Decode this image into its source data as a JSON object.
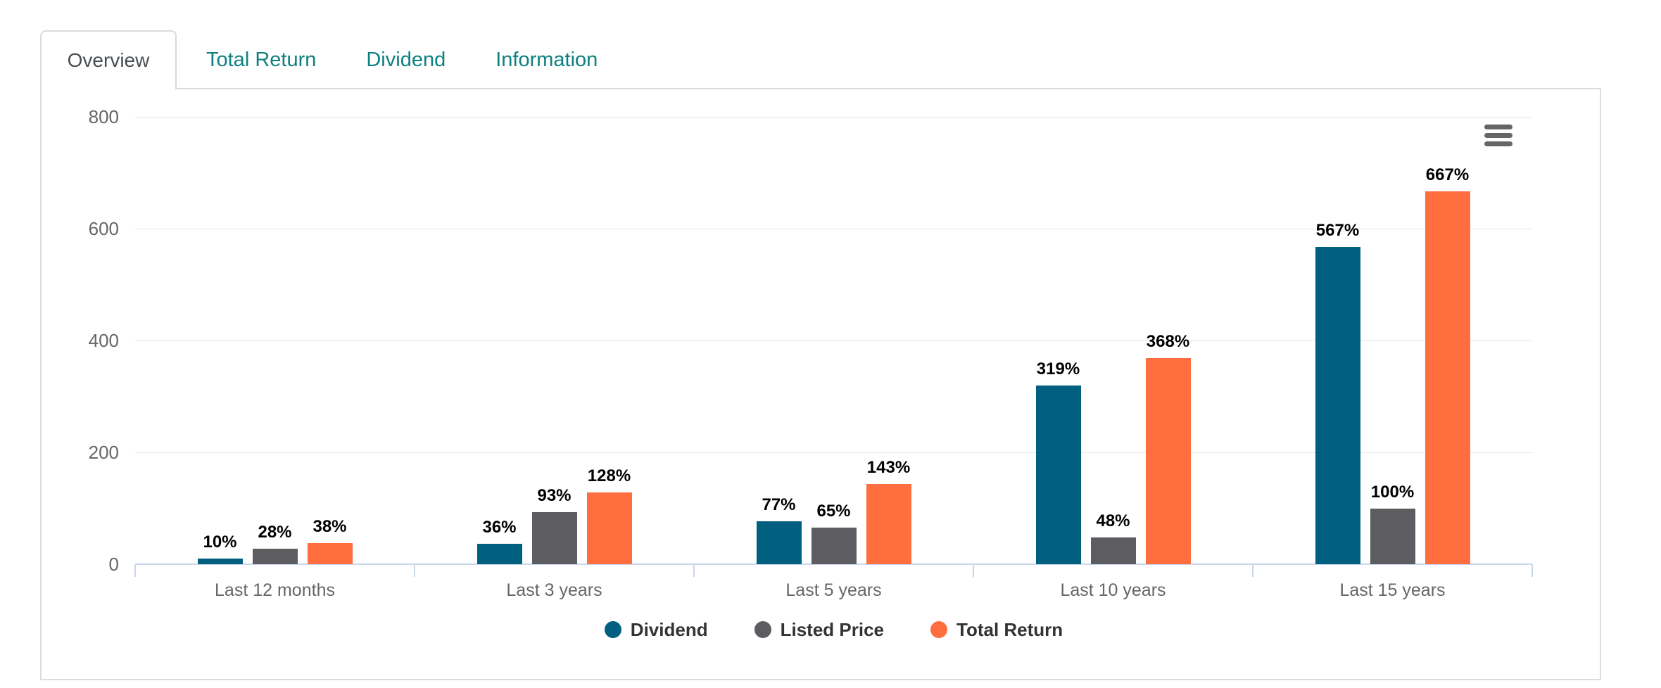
{
  "tabs": {
    "items": [
      {
        "label": "Overview",
        "active": true
      },
      {
        "label": "Total Return",
        "active": false
      },
      {
        "label": "Dividend",
        "active": false
      },
      {
        "label": "Information",
        "active": false
      }
    ]
  },
  "chart_data": {
    "type": "bar",
    "title": "",
    "xlabel": "",
    "ylabel": "",
    "categories": [
      "Last 12 months",
      "Last 3 years",
      "Last 5 years",
      "Last 10 years",
      "Last 15 years"
    ],
    "series": [
      {
        "name": "Dividend",
        "color": "#01607f",
        "values": [
          10,
          36,
          77,
          319,
          567
        ]
      },
      {
        "name": "Listed Price",
        "color": "#5d5c60",
        "values": [
          28,
          93,
          65,
          48,
          100
        ]
      },
      {
        "name": "Total Return",
        "color": "#fe6e3e",
        "values": [
          38,
          128,
          143,
          368,
          667
        ]
      }
    ],
    "value_suffix": "%",
    "data_labels": true,
    "ylim": [
      0,
      800
    ],
    "yticks": [
      0,
      200,
      400,
      600,
      800
    ],
    "grid": true,
    "legend_position": "bottom"
  },
  "menu": {
    "icon": "hamburger-menu-icon"
  },
  "styles": {
    "tab_accent": "#0f8080",
    "tab_active_text": "#474e54",
    "card_border": "#dcdcdc",
    "axis_line": "#ccd6eb",
    "gridline": "#e6e6e6",
    "axis_label_text": "#666666",
    "data_label_text": "#000000",
    "legend_text": "#333333",
    "menu_icon_color": "#666666"
  }
}
